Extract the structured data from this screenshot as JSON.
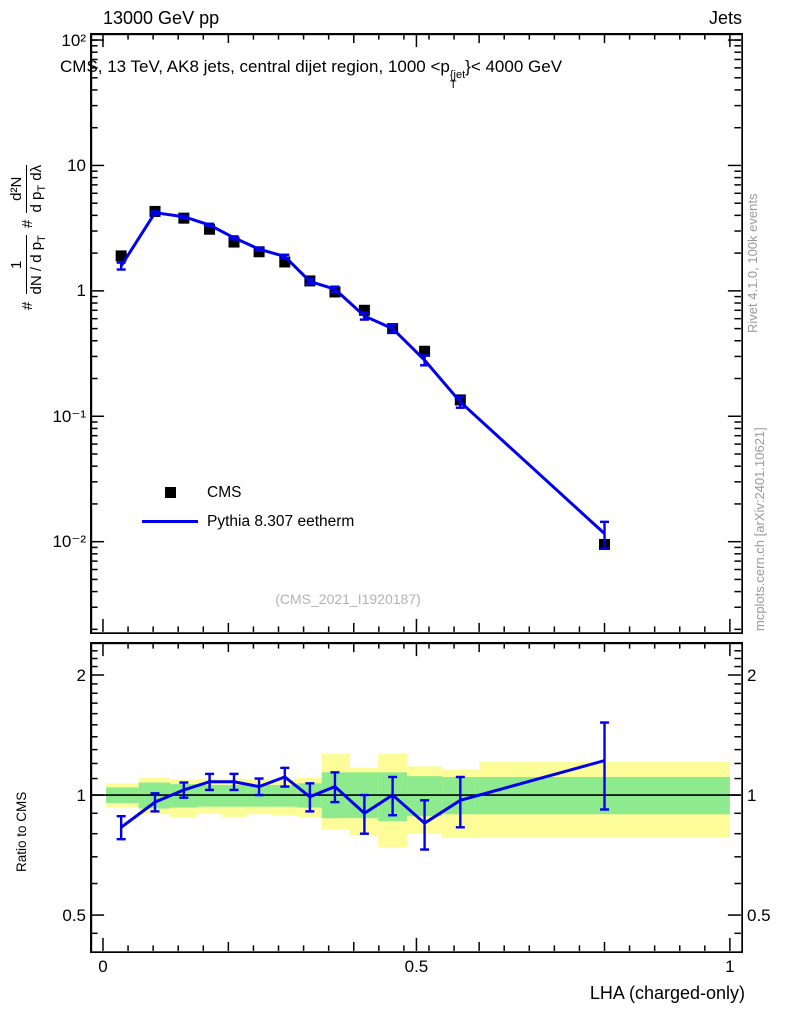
{
  "header": {
    "left": "13000 GeV pp",
    "right": "Jets"
  },
  "title_tokens": [
    [
      "CMS, 13 TeV, AK8 jets, central dijet region, 1000 <p"
    ],
    [
      "stack",
      "{jet",
      "T"
    ],
    [
      "}< 4000 GeV"
    ]
  ],
  "watermark": "(CMS_2021_I1920187)",
  "side_notes": {
    "top": "Rivet 4.1.0, 100k events",
    "bottom": "mcplots.cern.ch [arXiv:2401.10621]"
  },
  "legend": [
    {
      "label": "CMS",
      "marker": "square",
      "color": "#000000"
    },
    {
      "label": "Pythia 8.307 eetherm",
      "marker": "line",
      "color": "#0000ee"
    }
  ],
  "axes": {
    "x_label": "LHA (charged-only)",
    "ratio_y_label": "Ratio to CMS",
    "main_y_label": {
      "hash1": "#",
      "frac1": {
        "num": [
          [
            "1"
          ]
        ],
        "den": [
          [
            "dN / d p"
          ],
          [
            "T",
            "sub"
          ]
        ]
      },
      "hash2": "#",
      "frac2": {
        "num": [
          [
            "d²N"
          ]
        ],
        "den": [
          [
            "d p"
          ],
          [
            "T",
            "sub"
          ],
          [
            " dλ"
          ]
        ]
      }
    },
    "x_ticks": {
      "major": [
        {
          "v": 0,
          "label": "0"
        },
        {
          "v": 0.5,
          "label": "0.5"
        },
        {
          "v": 1,
          "label": "1"
        }
      ],
      "mid": [
        0.2,
        0.4,
        0.6,
        0.8
      ],
      "minor": [
        0.04,
        0.08,
        0.12,
        0.16,
        0.24,
        0.28,
        0.32,
        0.36,
        0.44,
        0.48,
        0.52,
        0.56,
        0.64,
        0.68,
        0.72,
        0.76,
        0.84,
        0.88,
        0.92,
        0.96
      ]
    },
    "main_y_ticks": {
      "major": [
        {
          "v": 100,
          "label": "10²"
        },
        {
          "v": 10,
          "label": "10"
        },
        {
          "v": 1,
          "label": "1"
        },
        {
          "v": 0.1,
          "label": "10⁻¹"
        },
        {
          "v": 0.01,
          "label": "10⁻²"
        }
      ],
      "minor": [
        0.002,
        0.003,
        0.004,
        0.005,
        0.006,
        0.007,
        0.008,
        0.009,
        0.02,
        0.03,
        0.04,
        0.05,
        0.06,
        0.07,
        0.08,
        0.09,
        0.2,
        0.3,
        0.4,
        0.5,
        0.6,
        0.7,
        0.8,
        0.9,
        2,
        3,
        4,
        5,
        6,
        7,
        8,
        9,
        20,
        30,
        40,
        50,
        60,
        70,
        80,
        90,
        100
      ]
    },
    "ratio_y_ticks": {
      "major": [
        {
          "v": 2,
          "label": "2"
        },
        {
          "v": 1,
          "label": "1"
        },
        {
          "v": 0.5,
          "label": "0.5"
        }
      ],
      "minor": [
        0.45,
        0.6,
        0.7,
        0.8,
        0.9,
        1.1,
        1.2,
        1.3,
        1.4,
        1.5,
        1.6,
        1.7,
        1.8,
        1.9,
        2.1,
        2.2,
        2.3,
        2.4
      ]
    }
  },
  "chart_data": {
    "type": "line",
    "title": "CMS, 13 TeV, AK8 jets, central dijet region, 1000 < pT^jet < 4000 GeV",
    "xlabel": "LHA (charged-only)",
    "xlim": [
      -0.0207,
      1.0193
    ],
    "main_ylim_log": [
      0.00187,
      113.8
    ],
    "ratio_ylim_log": [
      0.404,
      2.42
    ],
    "x": [
      0.029,
      0.083,
      0.129,
      0.17,
      0.209,
      0.249,
      0.29,
      0.33,
      0.37,
      0.417,
      0.462,
      0.513,
      0.57,
      0.8
    ],
    "series": [
      {
        "name": "CMS",
        "type": "scatter",
        "marker": "square",
        "color": "#000000",
        "y": [
          1.9,
          4.3,
          3.8,
          3.1,
          2.45,
          2.05,
          1.7,
          1.2,
          0.98,
          0.7,
          0.5,
          0.33,
          0.135,
          0.0095
        ]
      },
      {
        "name": "Pythia 8.307 eetherm",
        "type": "line",
        "color": "#0000ee",
        "y": [
          1.58,
          4.2,
          3.9,
          3.35,
          2.65,
          2.15,
          1.88,
          1.19,
          1.03,
          0.63,
          0.5,
          0.28,
          0.13,
          0.0116
        ],
        "yerr": [
          0.1,
          0.1,
          0.08,
          0.08,
          0.07,
          0.06,
          0.06,
          0.05,
          0.05,
          0.04,
          0.035,
          0.025,
          0.013,
          0.0028
        ]
      }
    ],
    "ratio_panel": {
      "ylabel": "Ratio to CMS",
      "ref_line": 1,
      "ratio": [
        0.83,
        0.96,
        1.03,
        1.08,
        1.08,
        1.05,
        1.11,
        0.99,
        1.05,
        0.9,
        1.0,
        0.85,
        0.97,
        1.22
      ],
      "ratio_err": [
        0.055,
        0.05,
        0.045,
        0.05,
        0.05,
        0.05,
        0.06,
        0.08,
        0.09,
        0.1,
        0.11,
        0.12,
        0.14,
        0.3
      ],
      "bin_edges": [
        0.005,
        0.057,
        0.107,
        0.15,
        0.189,
        0.229,
        0.269,
        0.31,
        0.349,
        0.394,
        0.439,
        0.485,
        0.541,
        0.6,
        1.0
      ],
      "band_green_color": "#8deb8d",
      "band_yellow_color": "#fcfc99",
      "band_green": [
        [
          0.955,
          1.045
        ],
        [
          0.925,
          1.075
        ],
        [
          0.93,
          1.065
        ],
        [
          0.935,
          1.06
        ],
        [
          0.935,
          1.06
        ],
        [
          0.935,
          1.06
        ],
        [
          0.935,
          1.06
        ],
        [
          0.93,
          1.07
        ],
        [
          0.875,
          1.14
        ],
        [
          0.875,
          1.14
        ],
        [
          0.86,
          1.14
        ],
        [
          0.885,
          1.115
        ],
        [
          0.895,
          1.11
        ],
        [
          0.895,
          1.11
        ]
      ],
      "band_yellow": [
        [
          0.93,
          1.07
        ],
        [
          0.895,
          1.105
        ],
        [
          0.88,
          1.095
        ],
        [
          0.9,
          1.1
        ],
        [
          0.88,
          1.1
        ],
        [
          0.895,
          1.095
        ],
        [
          0.89,
          1.095
        ],
        [
          0.88,
          1.105
        ],
        [
          0.82,
          1.27
        ],
        [
          0.79,
          1.17
        ],
        [
          0.74,
          1.27
        ],
        [
          0.8,
          1.18
        ],
        [
          0.78,
          1.16
        ],
        [
          0.785,
          1.21
        ]
      ]
    }
  }
}
